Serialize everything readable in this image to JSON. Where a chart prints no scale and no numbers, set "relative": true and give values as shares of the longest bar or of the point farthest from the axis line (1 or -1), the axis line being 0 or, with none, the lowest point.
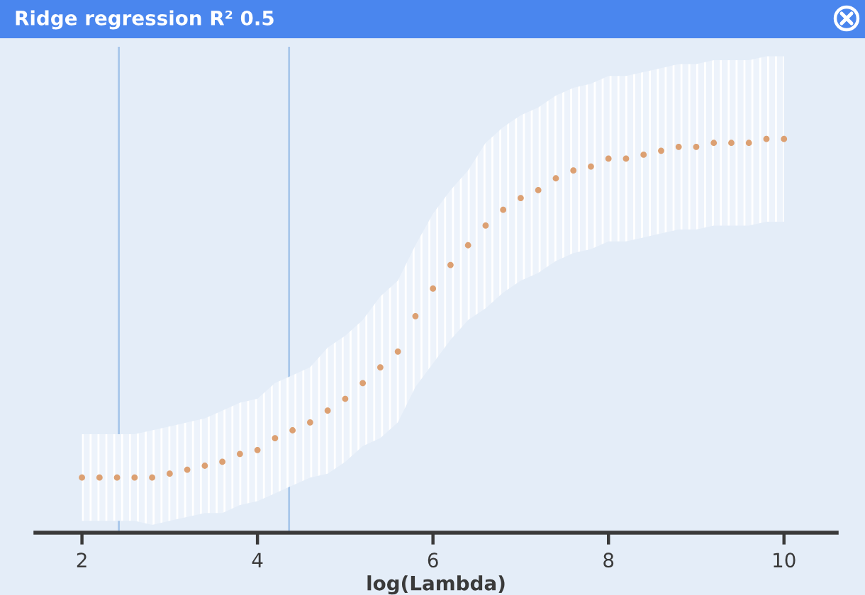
{
  "chart_data": {
    "type": "scatter",
    "title": "Ridge regression R² 0.5",
    "xlabel": "log(Lambda)",
    "relative": true,
    "xlim": [
      1.47,
      10.6
    ],
    "xticks": [
      2,
      4,
      6,
      8,
      10
    ],
    "grid": false,
    "marker": "circle",
    "x": [
      2.0,
      2.2,
      2.4,
      2.6,
      2.8,
      3.0,
      3.2,
      3.4,
      3.6,
      3.8,
      4.0,
      4.2,
      4.4,
      4.6,
      4.8,
      5.0,
      5.2,
      5.4,
      5.6,
      5.8,
      6.0,
      6.2,
      6.4,
      6.6,
      6.8,
      7.0,
      7.2,
      7.4,
      7.6,
      7.8,
      8.0,
      8.2,
      8.4,
      8.6,
      8.8,
      9.0,
      9.2,
      9.4,
      9.6,
      9.8,
      10.0
    ],
    "series": [
      {
        "color": "#dca072",
        "values": [
          0.14,
          0.14,
          0.14,
          0.14,
          0.14,
          0.15,
          0.16,
          0.17,
          0.18,
          0.2,
          0.21,
          0.24,
          0.26,
          0.28,
          0.31,
          0.34,
          0.38,
          0.42,
          0.46,
          0.55,
          0.62,
          0.68,
          0.73,
          0.78,
          0.82,
          0.85,
          0.87,
          0.9,
          0.92,
          0.93,
          0.95,
          0.95,
          0.96,
          0.97,
          0.98,
          0.98,
          0.99,
          0.99,
          0.99,
          1.0,
          1.0
        ],
        "lower": [
          0.03,
          0.03,
          0.03,
          0.03,
          0.02,
          0.03,
          0.04,
          0.05,
          0.05,
          0.07,
          0.08,
          0.1,
          0.12,
          0.14,
          0.15,
          0.18,
          0.22,
          0.24,
          0.28,
          0.37,
          0.43,
          0.49,
          0.54,
          0.57,
          0.61,
          0.64,
          0.66,
          0.69,
          0.71,
          0.72,
          0.74,
          0.74,
          0.75,
          0.76,
          0.77,
          0.77,
          0.78,
          0.78,
          0.78,
          0.79,
          0.79
        ],
        "upper": [
          0.25,
          0.25,
          0.25,
          0.25,
          0.26,
          0.27,
          0.28,
          0.29,
          0.31,
          0.33,
          0.34,
          0.38,
          0.4,
          0.42,
          0.47,
          0.5,
          0.54,
          0.6,
          0.64,
          0.73,
          0.81,
          0.87,
          0.92,
          0.99,
          1.03,
          1.06,
          1.08,
          1.11,
          1.13,
          1.14,
          1.16,
          1.16,
          1.17,
          1.18,
          1.19,
          1.19,
          1.2,
          1.2,
          1.2,
          1.21,
          1.21
        ]
      }
    ],
    "ref_lines": [
      {
        "axis": "x",
        "value": 2.42,
        "color": "#a8c6ea"
      },
      {
        "axis": "x",
        "value": 4.36,
        "color": "#a8c6ea"
      }
    ]
  }
}
